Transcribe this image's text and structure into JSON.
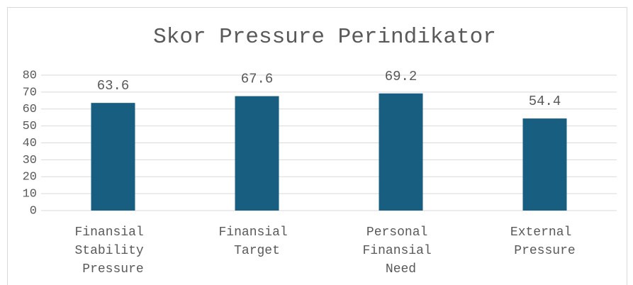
{
  "chart_data": {
    "type": "bar",
    "title": "Skor Pressure Perindikator",
    "categories": [
      "Finansial Stability Pressure",
      "Finansial Target",
      "Personal Finansial Need",
      "External Pressure"
    ],
    "values": [
      63.6,
      67.6,
      69.2,
      54.4
    ],
    "color": "#175e80",
    "ylim": [
      0,
      80
    ],
    "yticks": [
      0,
      10,
      20,
      30,
      40,
      50,
      60,
      70,
      80
    ],
    "grid": true
  }
}
